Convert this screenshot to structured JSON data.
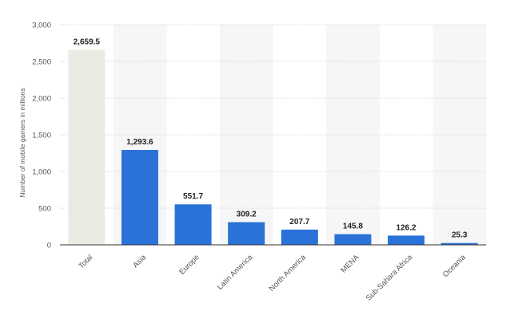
{
  "chart_data": {
    "type": "bar",
    "title": "",
    "xlabel": "",
    "ylabel": "Number of mobile gamers in millions",
    "ylim": [
      0,
      3000
    ],
    "yticks": [
      "0",
      "500",
      "1,000",
      "1,500",
      "2,000",
      "2,500",
      "3,000"
    ],
    "ytick_values": [
      0,
      500,
      1000,
      1500,
      2000,
      2500,
      3000
    ],
    "grid": "horizontal dotted",
    "categories": [
      "Total",
      "Asia",
      "Europe",
      "Latin America",
      "North America",
      "MENA",
      "Sub-Sahara Africa",
      "Oceania"
    ],
    "values": [
      2659.5,
      1293.6,
      551.7,
      309.2,
      207.7,
      145.8,
      126.2,
      25.3
    ],
    "data_labels": [
      "2,659.5",
      "1,293.6",
      "551.7",
      "309.2",
      "207.7",
      "145.8",
      "126.2",
      "25.3"
    ],
    "colors": {
      "total": "#ecebe3",
      "region": "#2a72d8",
      "band": "#f6f6f6",
      "grid": "#d6d6d6"
    }
  }
}
